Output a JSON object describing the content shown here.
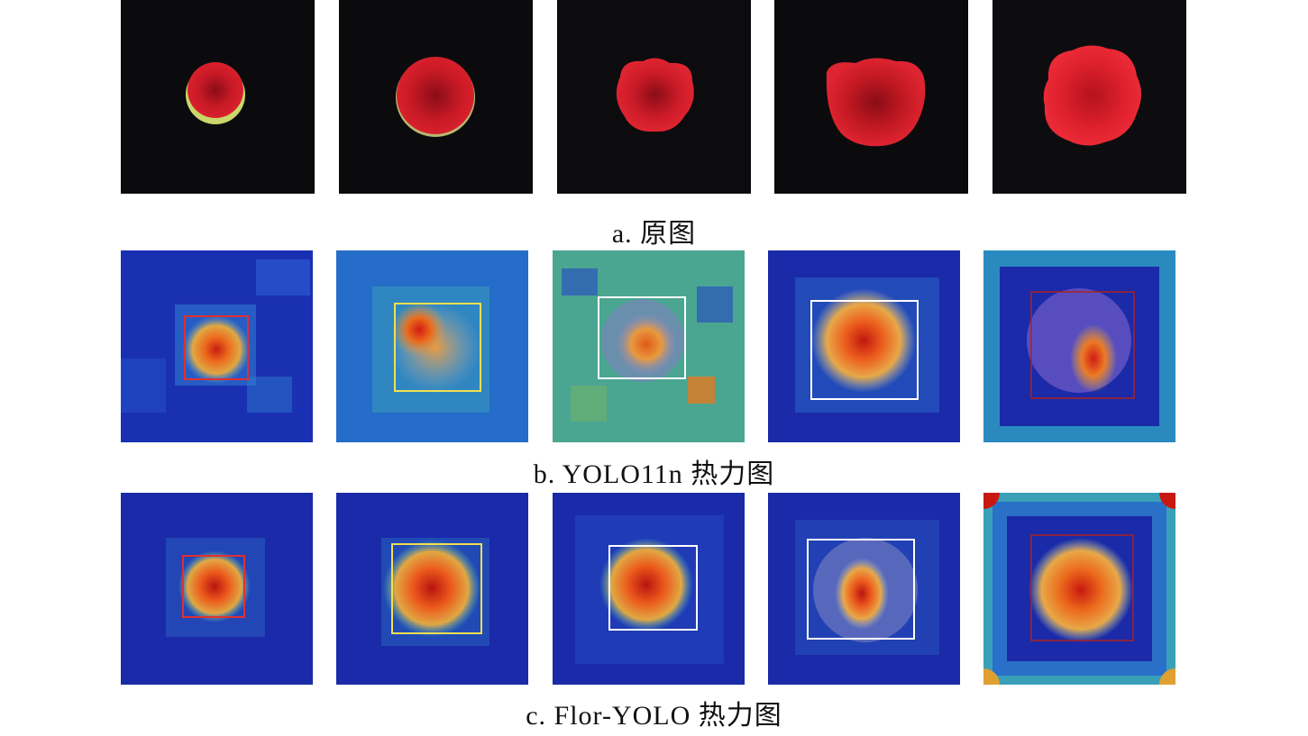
{
  "figure": {
    "rows": [
      {
        "id": "original",
        "caption": "a. 原图",
        "panels": [
          {
            "kind": "photo",
            "flower_scale": 0.28,
            "bg": "#0b0b0d"
          },
          {
            "kind": "photo",
            "flower_scale": 0.38,
            "bg": "#0b0b0d"
          },
          {
            "kind": "photo",
            "flower_scale": 0.42,
            "bg": "#0c0c0e"
          },
          {
            "kind": "photo",
            "flower_scale": 0.52,
            "bg": "#0b0b0d"
          },
          {
            "kind": "photo",
            "flower_scale": 0.52,
            "bg": "#0d0d10"
          }
        ]
      },
      {
        "id": "yolo11n",
        "caption": "b. YOLO11n 热力图",
        "panels": [
          {
            "kind": "heatmap",
            "box_color": "#e03030"
          },
          {
            "kind": "heatmap",
            "box_color": "#f0e050"
          },
          {
            "kind": "heatmap",
            "box_color": "#ffffff"
          },
          {
            "kind": "heatmap",
            "box_color": "#ffffff"
          },
          {
            "kind": "heatmap",
            "box_color": "#b02020"
          }
        ]
      },
      {
        "id": "flor-yolo",
        "caption": "c. Flor-YOLO 热力图",
        "panels": [
          {
            "kind": "heatmap",
            "box_color": "#e03030"
          },
          {
            "kind": "heatmap",
            "box_color": "#f0e050"
          },
          {
            "kind": "heatmap",
            "box_color": "#ffffff"
          },
          {
            "kind": "heatmap",
            "box_color": "#ffffff"
          },
          {
            "kind": "heatmap",
            "box_color": "#b02020"
          }
        ]
      }
    ],
    "colors": {
      "petal_red": "#d8202c",
      "petal_dark": "#8a0d16",
      "heat_bg": "#1a2fb0",
      "heat_hot": "#e8321c",
      "heat_warm": "#f0a030"
    }
  }
}
